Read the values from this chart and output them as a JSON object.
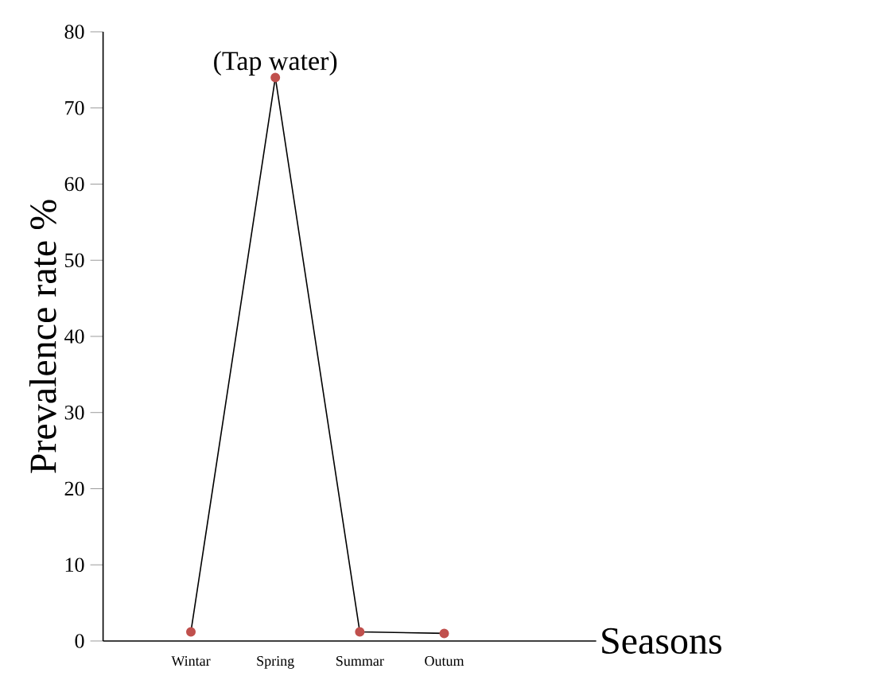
{
  "chart_data": {
    "type": "line",
    "xlabel": "Seasons",
    "ylabel": "Prevalence rate %",
    "categories": [
      "Wintar",
      "Spring",
      "Summar",
      "Outum"
    ],
    "values": [
      1.2,
      74,
      1.2,
      1
    ],
    "color": "#c0504d",
    "marker": "circle",
    "ylim": [
      0,
      80
    ],
    "yticks": [
      0,
      10,
      20,
      30,
      40,
      50,
      60,
      70,
      80
    ],
    "annotations": [
      {
        "text": "(Tap water)",
        "x": "Spring",
        "y": 74
      }
    ]
  }
}
